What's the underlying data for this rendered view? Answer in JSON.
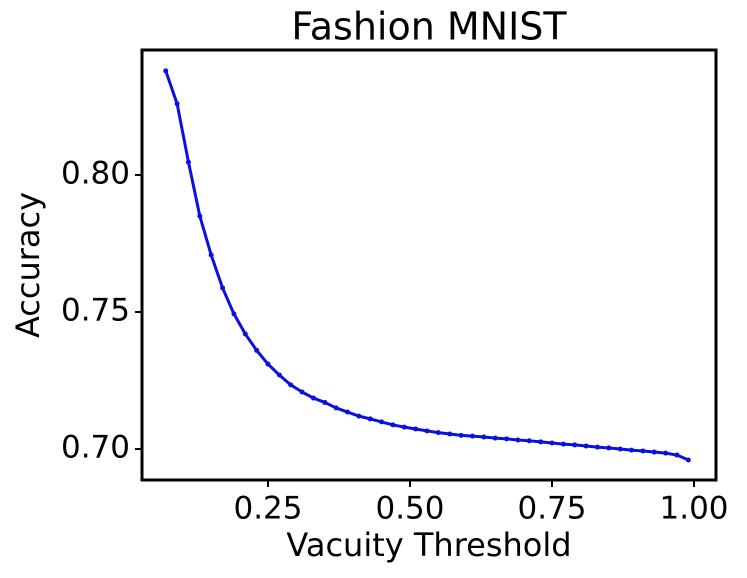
{
  "chart_data": {
    "type": "line",
    "title": "Fashion MNIST",
    "x_label": "Vacuity Threshold",
    "y_label": "Accuracy",
    "x": [
      0.07,
      0.09,
      0.11,
      0.13,
      0.15,
      0.17,
      0.19,
      0.21,
      0.23,
      0.25,
      0.27,
      0.29,
      0.31,
      0.33,
      0.35,
      0.37,
      0.39,
      0.41,
      0.43,
      0.45,
      0.47,
      0.49,
      0.51,
      0.53,
      0.55,
      0.57,
      0.59,
      0.61,
      0.63,
      0.65,
      0.67,
      0.69,
      0.71,
      0.73,
      0.75,
      0.77,
      0.79,
      0.81,
      0.83,
      0.85,
      0.87,
      0.89,
      0.91,
      0.93,
      0.95,
      0.97,
      0.99
    ],
    "series": [
      {
        "color": "#0a10e0",
        "values": [
          0.838,
          0.826,
          0.8047,
          0.785,
          0.7708,
          0.7588,
          0.7493,
          0.742,
          0.736,
          0.731,
          0.727,
          0.7234,
          0.7208,
          0.7186,
          0.717,
          0.715,
          0.7135,
          0.712,
          0.711,
          0.7099,
          0.7088,
          0.708,
          0.7073,
          0.7066,
          0.706,
          0.7055,
          0.705,
          0.7047,
          0.7044,
          0.704,
          0.7037,
          0.7033,
          0.703,
          0.7026,
          0.7022,
          0.7018,
          0.7015,
          0.7011,
          0.7007,
          0.7004,
          0.7,
          0.6996,
          0.6993,
          0.6989,
          0.6985,
          0.6978,
          0.696
        ]
      }
    ],
    "xlim": [
      0.0282,
      1.0387
    ],
    "ylim": [
      0.6887,
      0.8456
    ],
    "xticks": [
      0.25,
      {
        "value": 0.5,
        "label": "0.50"
      },
      0.75,
      {
        "value": 1,
        "label": "1.00"
      }
    ],
    "yticks": [
      {
        "value": 0.7,
        "label": "0.70"
      },
      0.75,
      {
        "value": 0.8,
        "label": "0.80"
      }
    ],
    "grid": false
  }
}
